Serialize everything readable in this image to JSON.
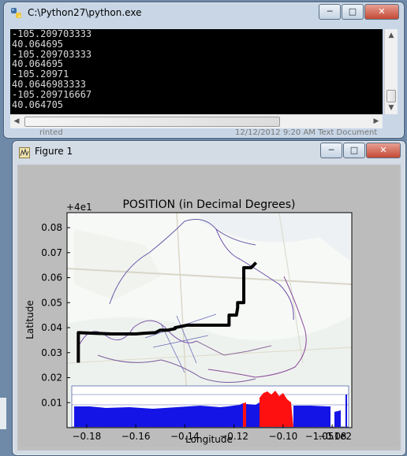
{
  "console_window": {
    "title": "C:\\Python27\\python.exe",
    "lines": [
      "-105.209703333",
      "40.064695",
      "-105.209703333",
      "40.064695",
      "-105.20971",
      "40.0646983333",
      "-105.209716667",
      "40.064705"
    ],
    "controls": {
      "minimize": "─",
      "maximize": "□",
      "close": "✕"
    }
  },
  "background": {
    "left_text": "rinted",
    "right_text": "12/12/2012 9:20 AM      Text Document"
  },
  "figure_window": {
    "title": "Figure 1",
    "controls": {
      "minimize": "─",
      "maximize": "□",
      "close": "✕"
    }
  },
  "chart_data": {
    "type": "line",
    "title": "POSITION (in Decimal Degrees)",
    "xlabel": "Longitude",
    "ylabel": "Latitude",
    "x_offset_label": "−1.051e2",
    "y_offset_label": "+4e1",
    "xlim": [
      -0.188,
      -0.072
    ],
    "ylim": [
      0.0,
      0.086
    ],
    "x_ticks": [
      "−0.18",
      "−0.16",
      "−0.14",
      "−0.12",
      "−0.10",
      "−0.08"
    ],
    "y_ticks": [
      "0.01",
      "0.02",
      "0.03",
      "0.04",
      "0.05",
      "0.06",
      "0.07",
      "0.08"
    ],
    "x_tick_values": [
      -0.18,
      -0.16,
      -0.14,
      -0.12,
      -0.1,
      -0.08
    ],
    "y_tick_values": [
      0.01,
      0.02,
      0.03,
      0.04,
      0.05,
      0.06,
      0.07,
      0.08
    ],
    "series": [
      {
        "color": "#000000",
        "x": [
          -0.1834,
          -0.1834,
          -0.1834,
          -0.1834,
          -0.17,
          -0.16,
          -0.156,
          -0.152,
          -0.15,
          -0.147,
          -0.144,
          -0.144,
          -0.139,
          -0.133,
          -0.126,
          -0.122,
          -0.122,
          -0.119,
          -0.1185,
          -0.1185,
          -0.116,
          -0.116,
          -0.113,
          -0.111
        ],
        "y": [
          0.026,
          0.03,
          0.034,
          0.038,
          0.0375,
          0.0375,
          0.0378,
          0.038,
          0.039,
          0.039,
          0.0396,
          0.04,
          0.041,
          0.041,
          0.041,
          0.041,
          0.045,
          0.045,
          0.048,
          0.05,
          0.05,
          0.064,
          0.064,
          0.066
        ]
      }
    ],
    "background_image": "map-inset-with-elevation-profile",
    "colors": {
      "axes_bg": "#ffffff",
      "elevation_blue": "#1414e6",
      "elevation_red": "#ff1010",
      "figure_bg": "#bcbcbc"
    }
  }
}
